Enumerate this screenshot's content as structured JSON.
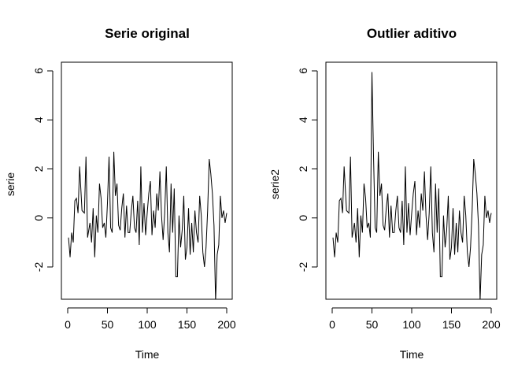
{
  "chart_data": [
    {
      "type": "line",
      "title": "Serie original",
      "xlabel": "Time",
      "ylabel": "serie",
      "xlim": [
        0,
        200
      ],
      "ylim": [
        -3.3,
        6.3
      ],
      "xticks": [
        0,
        50,
        100,
        150,
        200
      ],
      "yticks": [
        -2,
        0,
        2,
        4,
        6
      ],
      "xtick_labels": [
        "0",
        "50",
        "100",
        "150",
        "200"
      ],
      "ytick_labels": [
        "-2",
        "0",
        "2",
        "4",
        "6"
      ],
      "color": "#000000",
      "grid": false,
      "legend": "none",
      "x": [
        1,
        3,
        5,
        7,
        9,
        11,
        13,
        15,
        18,
        21,
        23,
        25,
        28,
        30,
        32,
        34,
        36,
        38,
        40,
        42,
        44,
        46,
        48,
        50,
        52,
        54,
        56,
        58,
        60,
        62,
        64,
        66,
        68,
        70,
        72,
        74,
        76,
        78,
        80,
        82,
        84,
        86,
        88,
        90,
        92,
        94,
        96,
        98,
        100,
        102,
        104,
        106,
        108,
        110,
        112,
        114,
        116,
        118,
        120,
        122,
        124,
        126,
        128,
        130,
        132,
        134,
        136,
        138,
        140,
        142,
        144,
        146,
        148,
        150,
        152,
        154,
        156,
        158,
        160,
        162,
        164,
        166,
        168,
        170,
        172,
        174,
        176,
        178,
        180,
        182,
        184,
        186,
        188,
        190,
        192,
        194,
        196,
        198,
        200
      ],
      "values": [
        -0.8,
        -1.6,
        -0.6,
        -1.0,
        0.7,
        0.8,
        0.2,
        2.1,
        0.3,
        0.2,
        2.5,
        -0.8,
        -0.2,
        -1.0,
        0.4,
        -1.6,
        0.1,
        -0.6,
        1.4,
        0.8,
        -0.4,
        -0.2,
        -0.8,
        0.6,
        2.5,
        -0.4,
        -0.6,
        2.7,
        0.9,
        1.4,
        -0.3,
        -0.5,
        0.4,
        1.0,
        -0.8,
        0.5,
        -0.6,
        -0.6,
        0.3,
        0.9,
        -0.4,
        -0.6,
        0.7,
        -1.1,
        2.1,
        -0.6,
        0.6,
        -0.7,
        0.2,
        1.0,
        1.5,
        -0.7,
        0.3,
        -0.4,
        1.0,
        0.3,
        1.9,
        0.1,
        -0.9,
        0.2,
        2.1,
        -0.6,
        -1.4,
        1.4,
        -0.6,
        1.2,
        -2.4,
        -2.4,
        0.1,
        -1.2,
        -0.5,
        0.9,
        -1.7,
        -1.2,
        0.4,
        -1.5,
        -0.2,
        -1.4,
        0.3,
        -0.6,
        -1.0,
        0.9,
        0.1,
        -1.4,
        -2.0,
        -1.2,
        0.3,
        2.4,
        1.8,
        1.0,
        -0.3,
        -3.4,
        -1.5,
        -1.1,
        0.9,
        0.0,
        0.3,
        -0.2,
        0.2
      ]
    },
    {
      "type": "line",
      "title": "Outlier aditivo",
      "xlabel": "Time",
      "ylabel": "serie2",
      "xlim": [
        0,
        200
      ],
      "ylim": [
        -3.3,
        6.3
      ],
      "xticks": [
        0,
        50,
        100,
        150,
        200
      ],
      "yticks": [
        -2,
        0,
        2,
        4,
        6
      ],
      "xtick_labels": [
        "0",
        "50",
        "100",
        "150",
        "200"
      ],
      "ytick_labels": [
        "-2",
        "0",
        "2",
        "4",
        "6"
      ],
      "color": "#000000",
      "grid": false,
      "legend": "none",
      "x": [
        1,
        3,
        5,
        7,
        9,
        11,
        13,
        15,
        18,
        21,
        23,
        25,
        28,
        30,
        32,
        34,
        36,
        38,
        40,
        42,
        44,
        46,
        48,
        50,
        52,
        54,
        56,
        58,
        60,
        62,
        64,
        66,
        68,
        70,
        72,
        74,
        76,
        78,
        80,
        82,
        84,
        86,
        88,
        90,
        92,
        94,
        96,
        98,
        100,
        102,
        104,
        106,
        108,
        110,
        112,
        114,
        116,
        118,
        120,
        122,
        124,
        126,
        128,
        130,
        132,
        134,
        136,
        138,
        140,
        142,
        144,
        146,
        148,
        150,
        152,
        154,
        156,
        158,
        160,
        162,
        164,
        166,
        168,
        170,
        172,
        174,
        176,
        178,
        180,
        182,
        184,
        186,
        188,
        190,
        192,
        194,
        196,
        198,
        200
      ],
      "values": [
        -0.8,
        -1.6,
        -0.6,
        -1.0,
        0.7,
        0.8,
        0.2,
        2.1,
        0.3,
        0.2,
        2.5,
        -0.8,
        -0.2,
        -1.0,
        0.4,
        -1.6,
        0.1,
        -0.6,
        1.4,
        0.8,
        -0.4,
        -0.2,
        -0.8,
        5.95,
        2.5,
        -0.4,
        -0.6,
        2.7,
        0.9,
        1.4,
        -0.3,
        -0.5,
        0.4,
        1.0,
        -0.8,
        0.5,
        -0.6,
        -0.6,
        0.3,
        0.9,
        -0.4,
        -0.6,
        0.7,
        -1.1,
        2.1,
        -0.6,
        0.6,
        -0.7,
        0.2,
        1.0,
        1.5,
        -0.7,
        0.3,
        -0.4,
        1.0,
        0.3,
        1.9,
        0.1,
        -0.9,
        0.2,
        2.1,
        -0.6,
        -1.4,
        1.4,
        -0.6,
        1.2,
        -2.4,
        -2.4,
        0.1,
        -1.2,
        -0.5,
        0.9,
        -1.7,
        -1.2,
        0.4,
        -1.5,
        -0.2,
        -1.4,
        0.3,
        -0.6,
        -1.0,
        0.9,
        0.1,
        -1.4,
        -2.0,
        -1.2,
        0.3,
        2.4,
        1.8,
        1.0,
        -0.3,
        -3.4,
        -1.5,
        -1.1,
        0.9,
        0.0,
        0.3,
        -0.2,
        0.2
      ]
    }
  ]
}
